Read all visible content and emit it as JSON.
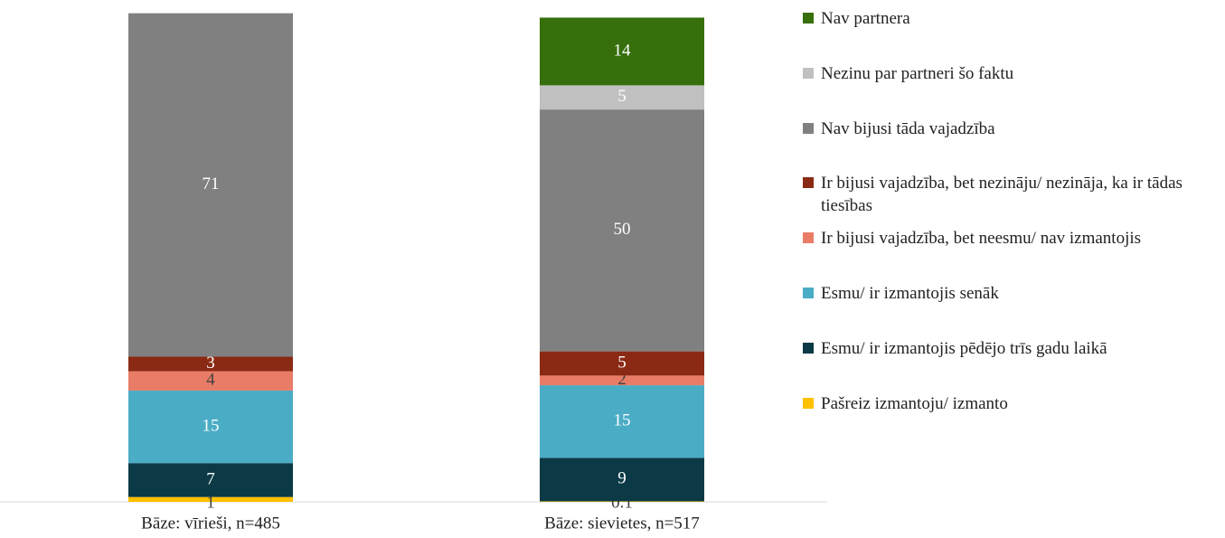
{
  "chart_data": {
    "type": "stacked_bar",
    "categories": [
      "Bāze: vīrieši, n=485",
      "Bāze: sievietes, n=517"
    ],
    "series": [
      {
        "name": "Pašreiz izmantoju/ izmanto",
        "color": "#ffc000",
        "values": [
          1,
          0.1
        ]
      },
      {
        "name": "Esmu/ ir izmantojis pēdējo trīs gadu laikā",
        "color": "#0b3a46",
        "values": [
          7,
          9
        ]
      },
      {
        "name": "Esmu/ ir izmantojis senāk",
        "color": "#4bacc6",
        "values": [
          15,
          15
        ]
      },
      {
        "name": "Ir bijusi vajadzība, bet neesmu/ nav izmantojis",
        "color": "#e97c66",
        "values": [
          4,
          2
        ]
      },
      {
        "name": "Ir bijusi vajadzība, bet nezināju/ nezināja, ka ir tādas tiesības",
        "color": "#8b2a14",
        "values": [
          3,
          5
        ]
      },
      {
        "name": "Nav bijusi tāda vajadzība",
        "color": "#808080",
        "values": [
          71,
          50
        ]
      },
      {
        "name": "Nezinu par partneri šo faktu",
        "color": "#c0c0c0",
        "values": [
          null,
          5
        ]
      },
      {
        "name": "Nav partnera",
        "color": "#376f0c",
        "values": [
          null,
          14
        ]
      }
    ],
    "ylim": [
      0,
      100
    ]
  }
}
